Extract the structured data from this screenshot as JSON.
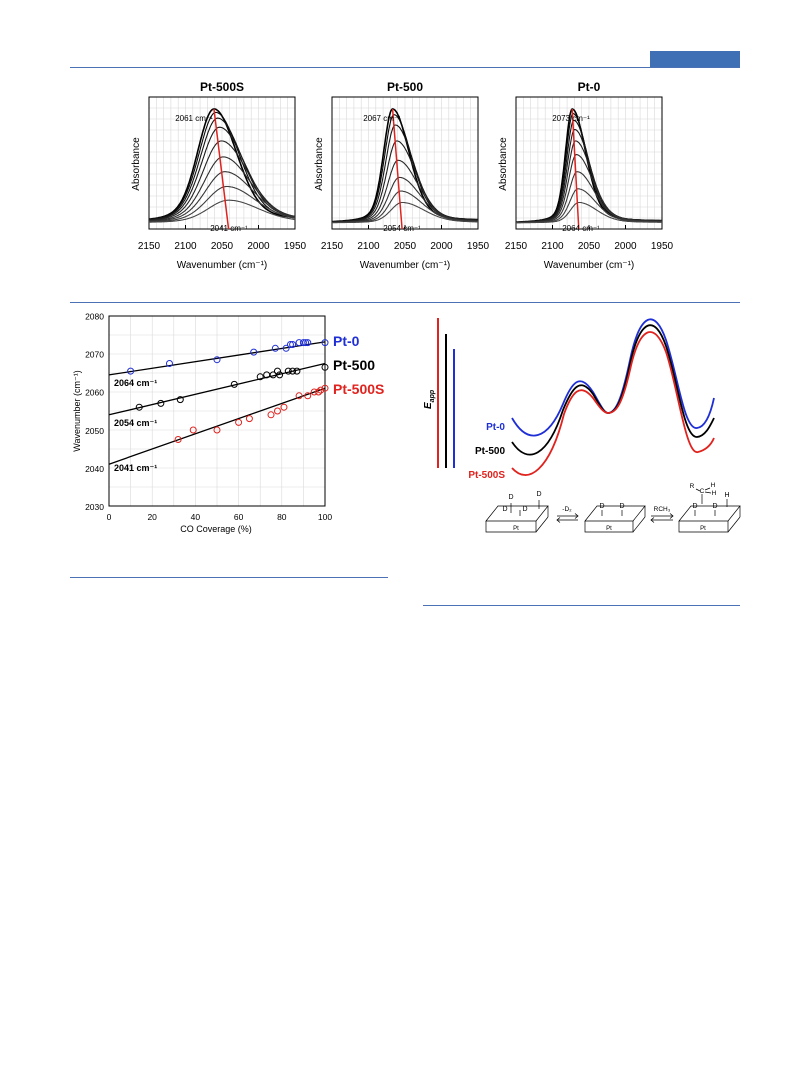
{
  "colors": {
    "rule": "#4a72b5",
    "pt0": "#1f2fd6",
    "pt500": "#000000",
    "pt500s": "#e0231e",
    "fit_marker": "#e0231e"
  },
  "chart_data": [
    {
      "type": "line",
      "title": "Pt-500S",
      "xlabel": "Wavenumber (cm⁻¹)",
      "ylabel": "Absorbance",
      "xlim": [
        2150,
        1950
      ],
      "xticks": [
        "2150",
        "2100",
        "2050",
        "2000",
        "1950"
      ],
      "grid": true,
      "peak_start_label": "2061 cm⁻¹",
      "peak_end_label": "2041 cm⁻¹",
      "peak_start": 2061,
      "peak_end": 2041,
      "curve_levels": [
        1.0,
        0.97,
        0.92,
        0.84,
        0.72,
        0.58,
        0.45,
        0.32,
        0.2
      ],
      "halfwidth_low": 22,
      "halfwidth_high": 30
    },
    {
      "type": "line",
      "title": "Pt-500",
      "xlabel": "Wavenumber (cm⁻¹)",
      "ylabel": "Absorbance",
      "xlim": [
        2150,
        1950
      ],
      "xticks": [
        "2150",
        "2100",
        "2050",
        "2000",
        "1950"
      ],
      "grid": true,
      "peak_start_label": "2067 cm⁻¹",
      "peak_end_label": "2054 cm⁻¹",
      "peak_start": 2067,
      "peak_end": 2054,
      "curve_levels": [
        1.0,
        0.95,
        0.86,
        0.72,
        0.55,
        0.4,
        0.28,
        0.18
      ],
      "halfwidth_low": 12,
      "halfwidth_high": 22
    },
    {
      "type": "line",
      "title": "Pt-0",
      "xlabel": "Wavenumber (cm⁻¹)",
      "ylabel": "Absorbance",
      "xlim": [
        2150,
        1950
      ],
      "xticks": [
        "2150",
        "2100",
        "2050",
        "2000",
        "1950"
      ],
      "grid": true,
      "peak_start_label": "2073 cm⁻¹",
      "peak_end_label": "2064 cm⁻¹",
      "peak_start": 2073,
      "peak_end": 2064,
      "curve_levels": [
        1.0,
        0.96,
        0.9,
        0.82,
        0.72,
        0.6,
        0.45,
        0.3,
        0.18
      ],
      "halfwidth_low": 9,
      "halfwidth_high": 18
    },
    {
      "type": "scatter",
      "title": "",
      "xlabel": "CO Coverage (%)",
      "ylabel": "Wavenumber (cm⁻¹)",
      "xlim": [
        0,
        100
      ],
      "ylim": [
        2030,
        2080
      ],
      "xticks": [
        "0",
        "20",
        "40",
        "60",
        "80",
        "100"
      ],
      "yticks": [
        "2030",
        "2040",
        "2050",
        "2060",
        "2070",
        "2080"
      ],
      "grid": true,
      "series": [
        {
          "name": "Pt-0",
          "intercept_label": "2064 cm⁻¹",
          "fit": [
            2064.5,
            2073.2
          ],
          "x": [
            10,
            28,
            50,
            67,
            77,
            82,
            84,
            85,
            88,
            90,
            91,
            92,
            100
          ],
          "y": [
            2065.5,
            2067.5,
            2068.5,
            2070.5,
            2071.5,
            2071.5,
            2072.5,
            2072.5,
            2073,
            2073,
            2073,
            2073,
            2073
          ]
        },
        {
          "name": "Pt-500",
          "intercept_label": "2054 cm⁻¹",
          "fit": [
            2054,
            2067.5
          ],
          "x": [
            14,
            24,
            33,
            58,
            70,
            73,
            76,
            78,
            79,
            83,
            85,
            87,
            100
          ],
          "y": [
            2056,
            2057,
            2058,
            2062,
            2064,
            2064.5,
            2064.5,
            2065.5,
            2064.5,
            2065.5,
            2065.5,
            2065.5,
            2066.5
          ]
        },
        {
          "name": "Pt-500S",
          "intercept_label": "2041 cm⁻¹",
          "fit": [
            2041,
            2061
          ],
          "x": [
            32,
            39,
            50,
            60,
            65,
            75,
            78,
            81,
            88,
            92,
            95,
            97,
            98,
            100
          ],
          "y": [
            2047.5,
            2050,
            2050,
            2052,
            2053,
            2054,
            2055,
            2056,
            2059,
            2059,
            2060,
            2060,
            2060.5,
            2061
          ]
        }
      ]
    }
  ],
  "energy_diagram": {
    "axis_label_main": "E",
    "axis_label_sub": "app",
    "labels": [
      "Pt-0",
      "Pt-500",
      "Pt-500S"
    ],
    "step1_label": "-D₂",
    "step2_label": "RCH₃",
    "atom_D": "D",
    "atom_H": "H",
    "atom_C": "C",
    "atom_R": "R",
    "surface_label": "Pt"
  }
}
